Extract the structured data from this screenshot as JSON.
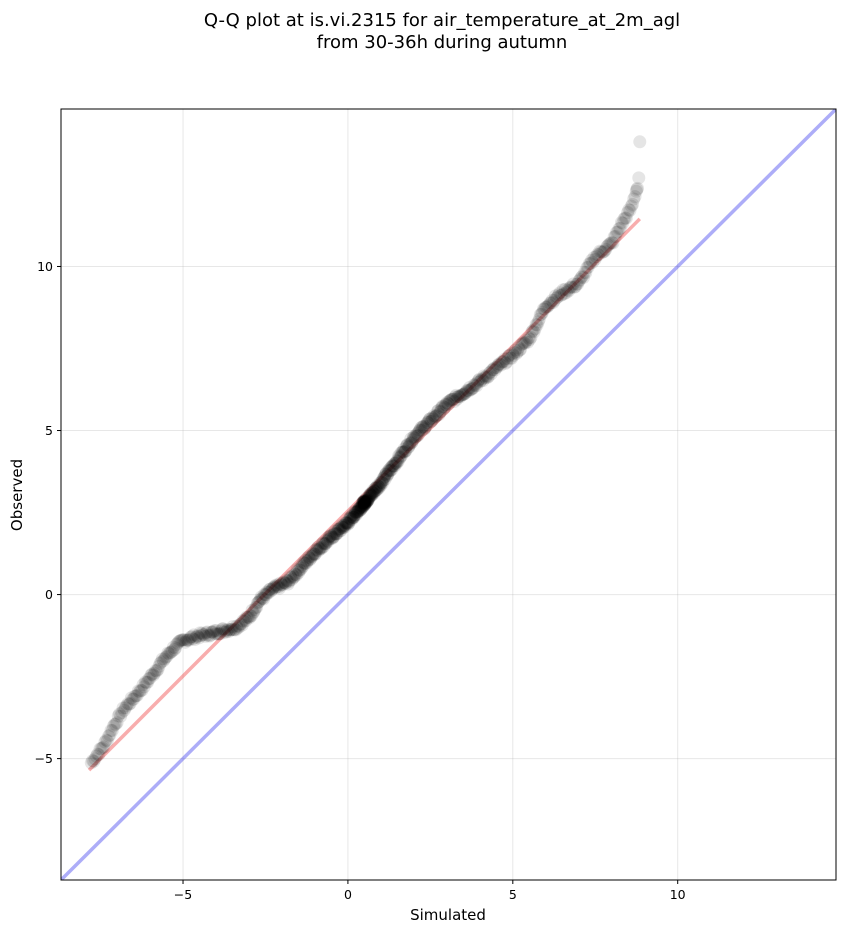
{
  "chart_data": {
    "type": "scatter",
    "title": [
      "Q-Q plot at is.vi.2315 for air_temperature_at_2m_agl",
      "from 30-36h during autumn"
    ],
    "xlabel": "Simulated",
    "ylabel": "Observed",
    "xlim": [
      -8.7,
      14.8
    ],
    "ylim": [
      -8.7,
      14.8
    ],
    "xticks": [
      -5,
      0,
      5,
      10
    ],
    "yticks": [
      -5,
      0,
      5,
      10
    ],
    "xtick_labels": [
      "−5",
      "0",
      "5",
      "10"
    ],
    "ytick_labels": [
      "−5",
      "0",
      "5",
      "10"
    ],
    "grid": true,
    "point_color": "#000000",
    "point_alpha": 0.1,
    "quantile_anchors": [
      [
        -7.8,
        -5.15
      ],
      [
        -7.4,
        -4.6
      ],
      [
        -7.1,
        -4.0
      ],
      [
        -6.8,
        -3.5
      ],
      [
        -6.5,
        -3.15
      ],
      [
        -6.2,
        -2.8
      ],
      [
        -5.9,
        -2.4
      ],
      [
        -5.6,
        -2.0
      ],
      [
        -5.3,
        -1.65
      ],
      [
        -5.0,
        -1.4
      ],
      [
        -4.5,
        -1.25
      ],
      [
        -4.0,
        -1.15
      ],
      [
        -3.4,
        -1.0
      ],
      [
        -3.0,
        -0.7
      ],
      [
        -2.7,
        -0.2
      ],
      [
        -2.3,
        0.15
      ],
      [
        -1.8,
        0.4
      ],
      [
        -1.0,
        1.3
      ],
      [
        0.0,
        2.2
      ],
      [
        1.0,
        3.4
      ],
      [
        2.0,
        4.8
      ],
      [
        3.0,
        5.8
      ],
      [
        4.0,
        6.5
      ],
      [
        5.0,
        7.3
      ],
      [
        5.5,
        7.8
      ],
      [
        6.0,
        8.8
      ],
      [
        6.5,
        9.2
      ],
      [
        7.0,
        9.5
      ],
      [
        7.5,
        10.3
      ],
      [
        8.0,
        10.7
      ],
      [
        8.3,
        11.3
      ],
      [
        8.6,
        11.8
      ],
      [
        8.8,
        12.5
      ]
    ],
    "extra_points": [
      [
        8.85,
        13.8
      ],
      [
        8.82,
        12.7
      ],
      [
        8.76,
        12.35
      ]
    ],
    "series": [
      {
        "role": "fit",
        "color": "#ee3333",
        "alpha": 0.4,
        "x": [
          -7.85,
          8.85
        ],
        "y": [
          -5.35,
          11.45
        ]
      },
      {
        "role": "identity",
        "color": "#3333ee",
        "alpha": 0.4,
        "x": [
          -8.7,
          14.8
        ],
        "y": [
          -8.7,
          14.8
        ]
      }
    ]
  }
}
